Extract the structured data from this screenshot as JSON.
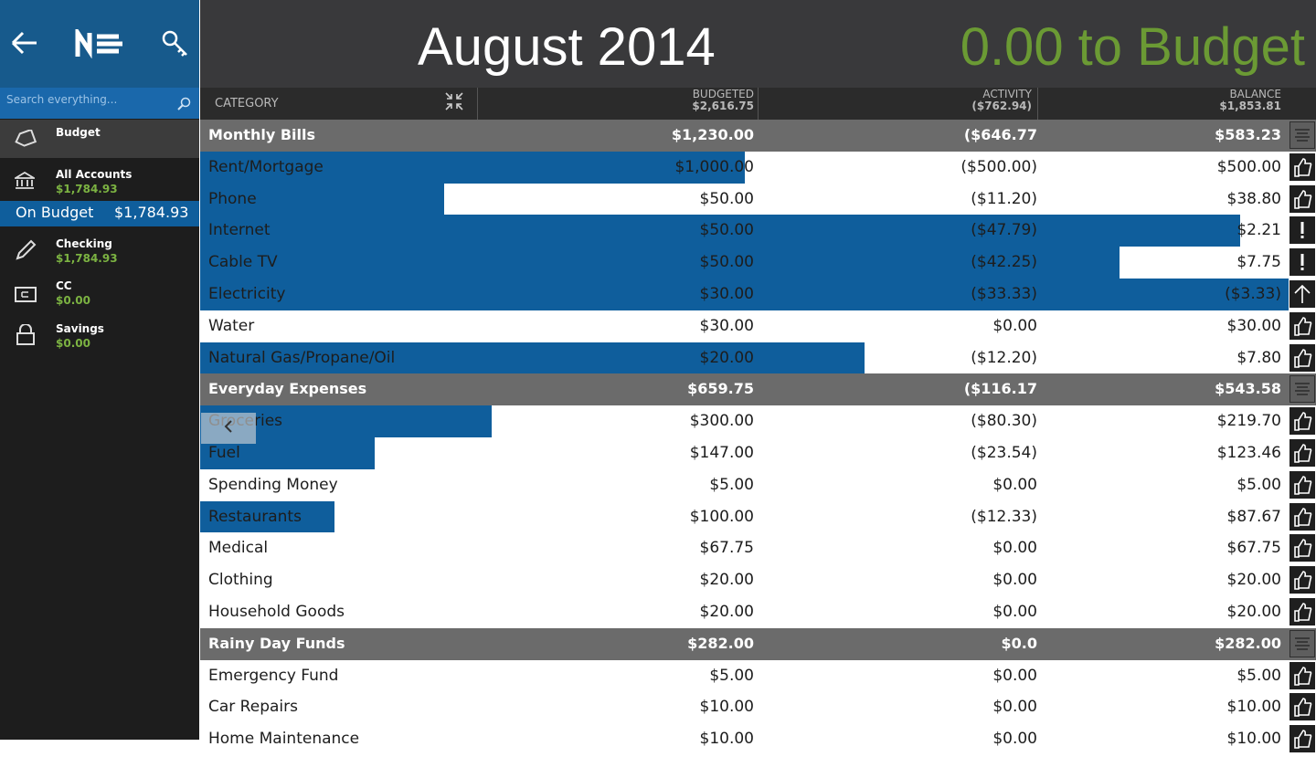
{
  "sidebar": {
    "search_placeholder": "Search everything...",
    "nav": [
      {
        "label": "Budget"
      },
      {
        "label": "All Accounts",
        "amount": "$1,784.93"
      },
      {
        "label": "On Budget",
        "amount": "$1,784.93"
      },
      {
        "label": "Checking",
        "amount": "$1,784.93"
      },
      {
        "label": "CC",
        "amount": "$0.00"
      },
      {
        "label": "Savings",
        "amount": "$0.00"
      }
    ]
  },
  "header": {
    "month": "August 2014",
    "to_budget": "0.00 to Budget"
  },
  "columns": [
    {
      "label": "CATEGORY"
    },
    {
      "label": "BUDGETED",
      "total": "$2,616.75"
    },
    {
      "label": "ACTIVITY",
      "total": "($762.94)"
    },
    {
      "label": "BALANCE",
      "total": "$1,853.81"
    }
  ],
  "groups": [
    {
      "name": "Monthly Bills",
      "budgeted": "$1,230.00",
      "activity": "($646.77",
      "balance": "$583.23",
      "items": [
        {
          "name": "Rent/Mortgage",
          "budgeted": "$1,000.00",
          "activity": "($500.00)",
          "balance": "$500.00"
        },
        {
          "name": "Phone",
          "budgeted": "$50.00",
          "activity": "($11.20)",
          "balance": "$38.80"
        },
        {
          "name": "Internet",
          "budgeted": "$50.00",
          "activity": "($47.79)",
          "balance": "$2.21"
        },
        {
          "name": "Cable TV",
          "budgeted": "$50.00",
          "activity": "($42.25)",
          "balance": "$7.75"
        },
        {
          "name": "Electricity",
          "budgeted": "$30.00",
          "activity": "($33.33)",
          "balance": "($3.33)"
        },
        {
          "name": "Water",
          "budgeted": "$30.00",
          "activity": "$0.00",
          "balance": "$30.00"
        },
        {
          "name": "Natural Gas/Propane/Oil",
          "budgeted": "$20.00",
          "activity": "($12.20)",
          "balance": "$7.80"
        }
      ]
    },
    {
      "name": "Everyday Expenses",
      "budgeted": "$659.75",
      "activity": "($116.17",
      "balance": "$543.58",
      "items": [
        {
          "name": "Groceries",
          "budgeted": "$300.00",
          "activity": "($80.30)",
          "balance": "$219.70"
        },
        {
          "name": "Fuel",
          "budgeted": "$147.00",
          "activity": "($23.54)",
          "balance": "$123.46"
        },
        {
          "name": "Spending Money",
          "budgeted": "$5.00",
          "activity": "$0.00",
          "balance": "$5.00"
        },
        {
          "name": "Restaurants",
          "budgeted": "$100.00",
          "activity": "($12.33)",
          "balance": "$87.67"
        },
        {
          "name": "Medical",
          "budgeted": "$67.75",
          "activity": "$0.00",
          "balance": "$67.75"
        },
        {
          "name": "Clothing",
          "budgeted": "$20.00",
          "activity": "$0.00",
          "balance": "$20.00"
        },
        {
          "name": "Household Goods",
          "budgeted": "$20.00",
          "activity": "$0.00",
          "balance": "$20.00"
        }
      ]
    },
    {
      "name": "Rainy Day Funds",
      "budgeted": "$282.00",
      "activity": "$0.0",
      "balance": "$282.00",
      "items": [
        {
          "name": "Emergency Fund",
          "budgeted": "$5.00",
          "activity": "$0.00",
          "balance": "$5.00"
        },
        {
          "name": "Car Repairs",
          "budgeted": "$10.00",
          "activity": "$0.00",
          "balance": "$10.00"
        },
        {
          "name": "Home Maintenance",
          "budgeted": "$10.00",
          "activity": "$0.00",
          "balance": "$10.00"
        }
      ]
    }
  ]
}
